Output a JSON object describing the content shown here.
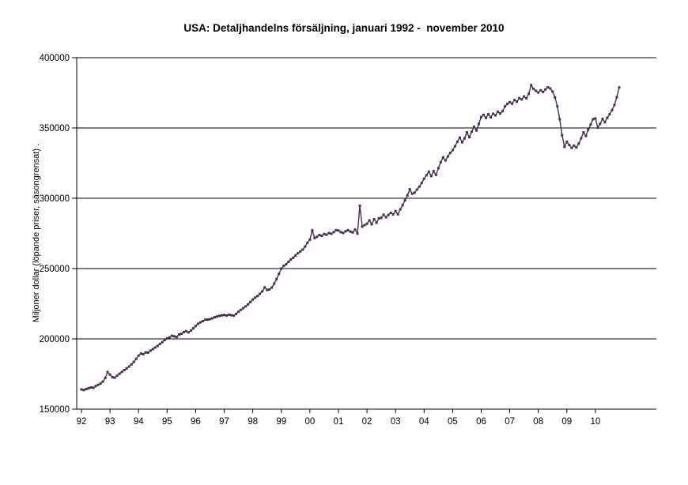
{
  "chart_data": {
    "type": "line",
    "title": "USA: Detaljhandelns försäljning, januari 1992 -  november 2010",
    "ylabel": "Miljoner dollar (löpande priser, säsongrensat) .",
    "xlabel": "",
    "period_start": "januari 1992",
    "period_end": "november 2010",
    "x_tick_labels": [
      "92",
      "93",
      "94",
      "95",
      "96",
      "97",
      "98",
      "99",
      "00",
      "01",
      "02",
      "03",
      "04",
      "05",
      "06",
      "07",
      "08",
      "09",
      "10"
    ],
    "y_ticks": [
      150000,
      200000,
      250000,
      300000,
      350000,
      400000
    ],
    "ylim": [
      150000,
      400000
    ],
    "grid": "horizontal",
    "legend": "none",
    "line_color": "#482c52",
    "axis_color": "#000000",
    "frequency": "monthly",
    "series": [
      {
        "name": "Detaljhandelns försäljning",
        "values": [
          164000,
          163600,
          164300,
          164900,
          165500,
          165200,
          166400,
          167300,
          168200,
          169600,
          172200,
          176400,
          174600,
          172700,
          172400,
          173900,
          175200,
          176500,
          177800,
          179000,
          180300,
          181800,
          183600,
          185800,
          188100,
          189500,
          189100,
          190400,
          190200,
          191600,
          192700,
          193900,
          195000,
          196400,
          197700,
          199200,
          200400,
          201000,
          202200,
          201800,
          201300,
          203100,
          203600,
          204800,
          205500,
          204600,
          206000,
          207500,
          209100,
          210700,
          211700,
          212600,
          213600,
          213700,
          214000,
          214600,
          215400,
          215900,
          216400,
          216700,
          217000,
          216600,
          217200,
          216800,
          216500,
          217700,
          219300,
          220600,
          221800,
          223100,
          224500,
          226200,
          228000,
          229300,
          230500,
          232000,
          233800,
          236600,
          234800,
          235100,
          236500,
          239300,
          242600,
          246200,
          250000,
          251900,
          253000,
          254800,
          256500,
          257700,
          259300,
          260900,
          262200,
          263500,
          265700,
          268400,
          270600,
          277200,
          271700,
          272600,
          273900,
          273300,
          274600,
          274100,
          275300,
          274700,
          275900,
          277300,
          277100,
          275900,
          275300,
          276500,
          277300,
          276300,
          275700,
          277700,
          274900,
          294600,
          279800,
          280900,
          281900,
          284300,
          281500,
          285100,
          282600,
          285700,
          286100,
          288300,
          286500,
          288100,
          289700,
          288500,
          290900,
          288600,
          292100,
          295100,
          298600,
          302100,
          306400,
          303200,
          304000,
          306200,
          308200,
          310900,
          313900,
          316400,
          318900,
          315800,
          319300,
          316600,
          321400,
          325600,
          329100,
          326900,
          329800,
          332300,
          334200,
          337000,
          340200,
          343100,
          339800,
          342600,
          346900,
          343400,
          347300,
          350800,
          348200,
          352900,
          357800,
          359400,
          357200,
          359800,
          357600,
          360100,
          359000,
          361600,
          360200,
          362000,
          365400,
          367200,
          368400,
          367300,
          369900,
          368700,
          371200,
          370300,
          372400,
          371100,
          374300,
          380500,
          377800,
          376400,
          375200,
          376800,
          375600,
          377400,
          378900,
          378100,
          375900,
          371800,
          365400,
          356200,
          344800,
          336600,
          340200,
          337900,
          335800,
          337400,
          336100,
          338900,
          342600,
          346900,
          344300,
          348800,
          352400,
          356200,
          356800,
          350200,
          353000,
          356400,
          354100,
          357300,
          359800,
          362700,
          366400,
          371900,
          378800
        ]
      }
    ]
  }
}
